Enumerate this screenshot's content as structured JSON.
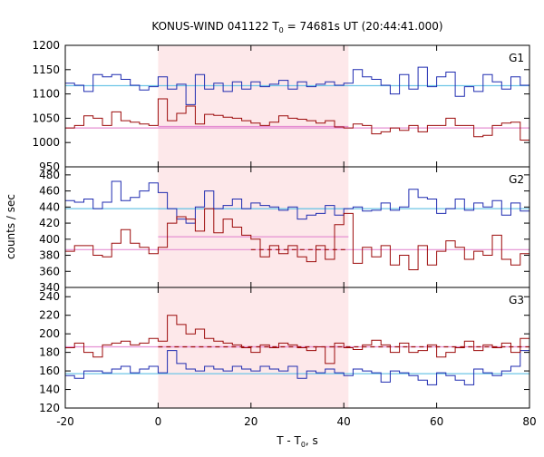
{
  "chart_data": {
    "type": "line",
    "title_main": "KONUS-WIND 041122 T",
    "title_sub": "0",
    "title_rest": " = 74681s UT (20:44:41.000)",
    "xlabel_main": "T - T",
    "xlabel_sub": "0",
    "xlabel_rest": ", s",
    "ylabel": "counts / sec",
    "xlim": [
      -20,
      80
    ],
    "x_ticks": [
      -20,
      0,
      20,
      40,
      60,
      80
    ],
    "x_tick_labels": [
      "-20",
      "0",
      "20",
      "40",
      "60",
      "80"
    ],
    "highlight": [
      0,
      41
    ],
    "highlight_color": "#fde8ea",
    "colors": {
      "blue": "#1f2bb0",
      "red": "#9c0a0a",
      "cyan": "#6ec6e6",
      "pink": "#e58fd2"
    },
    "step_x": [
      -20,
      -18,
      -16,
      -14,
      -12,
      -10,
      -8,
      -6,
      -4,
      -2,
      0,
      2,
      4,
      6,
      8,
      10,
      12,
      14,
      16,
      18,
      20,
      22,
      24,
      26,
      28,
      30,
      32,
      34,
      36,
      38,
      40,
      42,
      44,
      46,
      48,
      50,
      52,
      54,
      56,
      58,
      60,
      62,
      64,
      66,
      68,
      70,
      72,
      74,
      76,
      78,
      80
    ],
    "panels": [
      {
        "label": "G1",
        "ylim": [
          950,
          1200
        ],
        "y_ticks": [
          950,
          1000,
          1050,
          1100,
          1150,
          1200
        ],
        "y_tick_labels": [
          "950",
          "1000",
          "1050",
          "1100",
          "1150",
          "1200"
        ],
        "blue": [
          1122,
          1118,
          1105,
          1140,
          1135,
          1140,
          1130,
          1118,
          1108,
          1115,
          1135,
          1110,
          1120,
          1078,
          1140,
          1110,
          1122,
          1105,
          1125,
          1110,
          1125,
          1115,
          1120,
          1128,
          1110,
          1125,
          1115,
          1120,
          1125,
          1118,
          1122,
          1150,
          1135,
          1130,
          1118,
          1100,
          1140,
          1110,
          1155,
          1115,
          1135,
          1145,
          1095,
          1115,
          1105,
          1140,
          1125,
          1110,
          1135,
          1118
        ],
        "blue_mean": 1117,
        "red": [
          1030,
          1035,
          1055,
          1050,
          1035,
          1063,
          1045,
          1042,
          1038,
          1035,
          1090,
          1045,
          1060,
          1075,
          1038,
          1058,
          1056,
          1052,
          1050,
          1045,
          1040,
          1035,
          1042,
          1055,
          1050,
          1048,
          1045,
          1040,
          1045,
          1032,
          1030,
          1038,
          1035,
          1018,
          1022,
          1030,
          1025,
          1035,
          1022,
          1035,
          1035,
          1050,
          1035,
          1035,
          1012,
          1015,
          1035,
          1040,
          1042,
          1005,
          998
        ],
        "red_mean": 1030,
        "pink_segment": [
          0,
          41,
          1033
        ],
        "cyan_segment": null,
        "red_dashed": null
      },
      {
        "label": "G2",
        "ylim": [
          340,
          490
        ],
        "y_ticks": [
          340,
          360,
          380,
          400,
          420,
          440,
          460,
          480
        ],
        "y_tick_labels": [
          "340",
          "360",
          "380",
          "400",
          "420",
          "440",
          "460",
          "480"
        ],
        "blue": [
          448,
          446,
          450,
          438,
          446,
          472,
          448,
          452,
          460,
          470,
          458,
          438,
          425,
          420,
          440,
          460,
          438,
          442,
          450,
          438,
          445,
          442,
          440,
          436,
          440,
          425,
          430,
          432,
          442,
          430,
          438,
          440,
          435,
          436,
          445,
          436,
          440,
          462,
          452,
          450,
          432,
          438,
          450,
          436,
          445,
          440,
          448,
          430,
          445,
          435
        ],
        "blue_mean": 438,
        "red": [
          385,
          392,
          392,
          380,
          378,
          395,
          412,
          395,
          390,
          382,
          390,
          420,
          428,
          425,
          410,
          438,
          408,
          425,
          415,
          405,
          400,
          378,
          392,
          382,
          392,
          378,
          372,
          392,
          375,
          418,
          432,
          370,
          390,
          378,
          392,
          368,
          380,
          362,
          392,
          368,
          385,
          398,
          390,
          375,
          385,
          380,
          405,
          375,
          368,
          382,
          388
        ],
        "red_mean": 387,
        "pink_segment": [
          0,
          41,
          403
        ],
        "cyan_segment": [
          0,
          41,
          438
        ],
        "red_dashed": [
          20,
          41,
          387
        ]
      },
      {
        "label": "G3",
        "ylim": [
          120,
          250
        ],
        "y_ticks": [
          120,
          140,
          160,
          180,
          200,
          220,
          240
        ],
        "y_tick_labels": [
          "120",
          "140",
          "160",
          "180",
          "200",
          "220",
          "240"
        ],
        "blue": [
          155,
          152,
          160,
          160,
          158,
          162,
          165,
          158,
          162,
          165,
          158,
          182,
          168,
          162,
          160,
          165,
          162,
          160,
          165,
          162,
          160,
          165,
          162,
          160,
          165,
          152,
          160,
          158,
          162,
          158,
          155,
          162,
          160,
          158,
          148,
          160,
          158,
          155,
          150,
          145,
          158,
          155,
          150,
          145,
          162,
          158,
          155,
          160,
          165,
          182
        ],
        "blue_mean": 157,
        "red": [
          185,
          190,
          180,
          175,
          188,
          190,
          192,
          188,
          190,
          195,
          192,
          220,
          210,
          200,
          205,
          195,
          192,
          190,
          188,
          185,
          180,
          188,
          185,
          190,
          188,
          185,
          182,
          186,
          168,
          190,
          185,
          183,
          188,
          193,
          188,
          180,
          190,
          180,
          182,
          188,
          175,
          180,
          185,
          192,
          182,
          188,
          185,
          190,
          180,
          195
        ],
        "red_mean": 186,
        "pink_segment": [
          0,
          41,
          186
        ],
        "cyan_segment": null,
        "red_dashed": [
          0,
          80,
          186
        ]
      }
    ]
  }
}
